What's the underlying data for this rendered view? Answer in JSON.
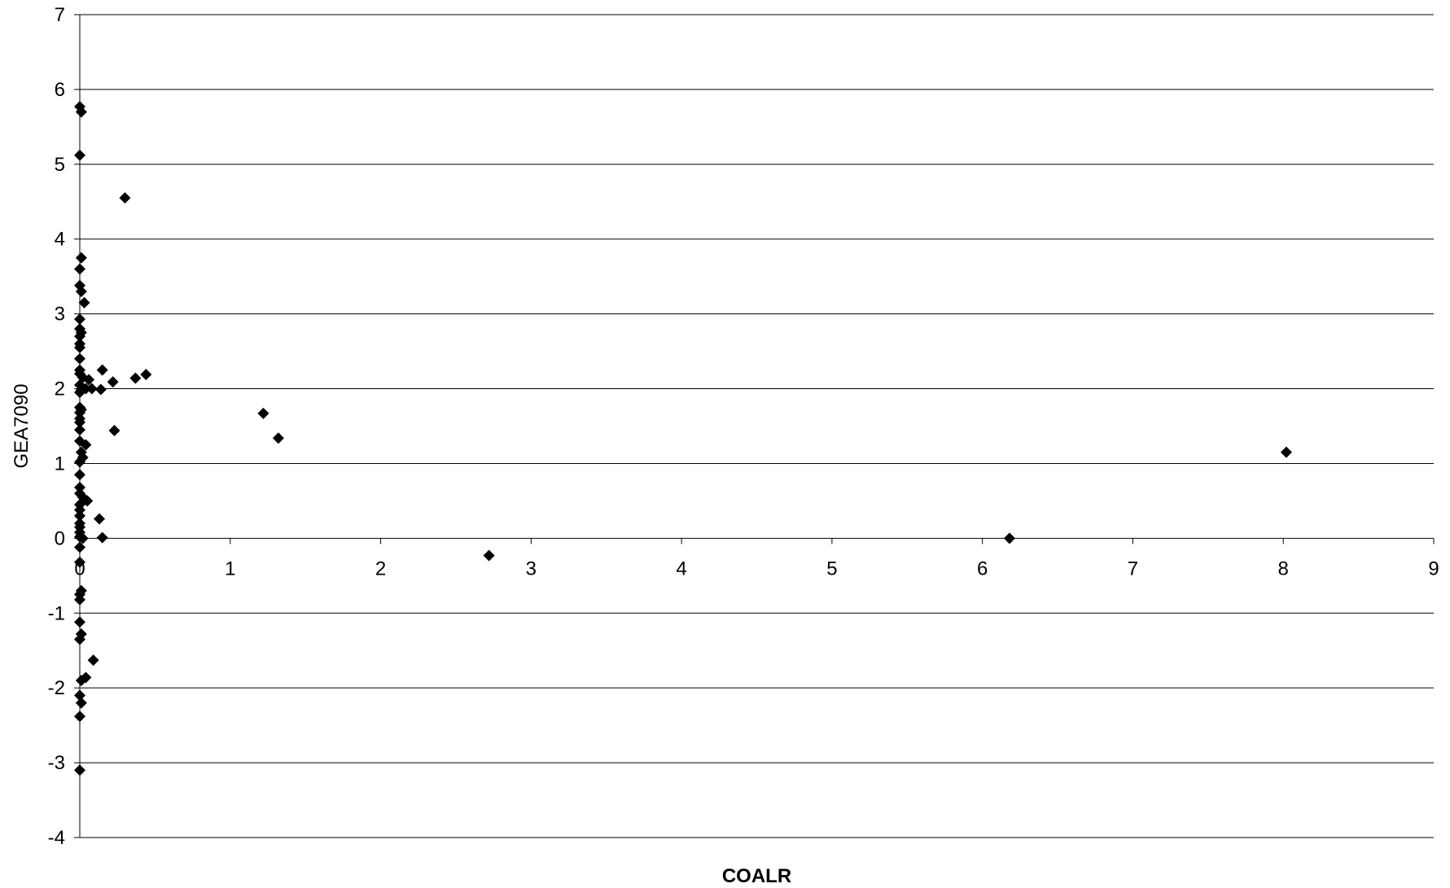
{
  "chart_data": {
    "type": "scatter",
    "title": "",
    "xlabel": "COALR",
    "ylabel": "GEA7090",
    "xlim": [
      0,
      9
    ],
    "ylim": [
      -4,
      7
    ],
    "xticks": [
      0,
      1,
      2,
      3,
      4,
      5,
      6,
      7,
      8,
      9
    ],
    "yticks": [
      -4,
      -3,
      -2,
      -1,
      0,
      1,
      2,
      3,
      4,
      5,
      6,
      7
    ],
    "grid": "horizontal",
    "legend": "none",
    "marker": "diamond",
    "colors": {
      "marker": "#000000",
      "grid": "#000000",
      "axis": "#000000",
      "background": "#ffffff"
    },
    "series": [
      {
        "points": [
          [
            0,
            5.77
          ],
          [
            0.01,
            5.7
          ],
          [
            0,
            5.12
          ],
          [
            0.3,
            4.55
          ],
          [
            0.01,
            3.75
          ],
          [
            0,
            3.6
          ],
          [
            0,
            3.38
          ],
          [
            0.01,
            3.3
          ],
          [
            0.03,
            3.15
          ],
          [
            0,
            2.93
          ],
          [
            0,
            2.8
          ],
          [
            0.01,
            2.75
          ],
          [
            0,
            2.7
          ],
          [
            0,
            2.6
          ],
          [
            0,
            2.55
          ],
          [
            0,
            2.4
          ],
          [
            0,
            2.25
          ],
          [
            0,
            2.2
          ],
          [
            0.02,
            2.15
          ],
          [
            0.06,
            2.12
          ],
          [
            0,
            2.05
          ],
          [
            0.04,
            2.0
          ],
          [
            0.01,
            1.98
          ],
          [
            0,
            1.95
          ],
          [
            0.08,
            2.0
          ],
          [
            0.15,
            2.25
          ],
          [
            0.14,
            1.99
          ],
          [
            0.22,
            2.09
          ],
          [
            0.37,
            2.14
          ],
          [
            0.44,
            2.19
          ],
          [
            0,
            1.75
          ],
          [
            0.01,
            1.72
          ],
          [
            0,
            1.68
          ],
          [
            0,
            1.6
          ],
          [
            0,
            1.55
          ],
          [
            0,
            1.45
          ],
          [
            0.23,
            1.44
          ],
          [
            1.22,
            1.67
          ],
          [
            1.32,
            1.34
          ],
          [
            0,
            1.3
          ],
          [
            0.04,
            1.25
          ],
          [
            0.01,
            1.15
          ],
          [
            0.02,
            1.08
          ],
          [
            0,
            1.02
          ],
          [
            0,
            0.85
          ],
          [
            0,
            0.68
          ],
          [
            0,
            0.6
          ],
          [
            0.02,
            0.55
          ],
          [
            0.05,
            0.5
          ],
          [
            0,
            0.45
          ],
          [
            0,
            0.38
          ],
          [
            0,
            0.3
          ],
          [
            0.13,
            0.26
          ],
          [
            0,
            0.2
          ],
          [
            0,
            0.15
          ],
          [
            0,
            0.08
          ],
          [
            0,
            0.02
          ],
          [
            0.02,
            0.0
          ],
          [
            0.15,
            0.01
          ],
          [
            0,
            -0.12
          ],
          [
            0,
            -0.32
          ],
          [
            2.72,
            -0.23
          ],
          [
            6.18,
            0.0
          ],
          [
            8.02,
            1.15
          ],
          [
            0.01,
            -0.7
          ],
          [
            0,
            -0.75
          ],
          [
            0,
            -0.82
          ],
          [
            0,
            -1.12
          ],
          [
            0.01,
            -1.28
          ],
          [
            0,
            -1.35
          ],
          [
            0.09,
            -1.63
          ],
          [
            0.04,
            -1.86
          ],
          [
            0.01,
            -1.9
          ],
          [
            0,
            -2.1
          ],
          [
            0.01,
            -2.2
          ],
          [
            0,
            -2.38
          ],
          [
            0,
            -3.1
          ]
        ]
      }
    ]
  }
}
